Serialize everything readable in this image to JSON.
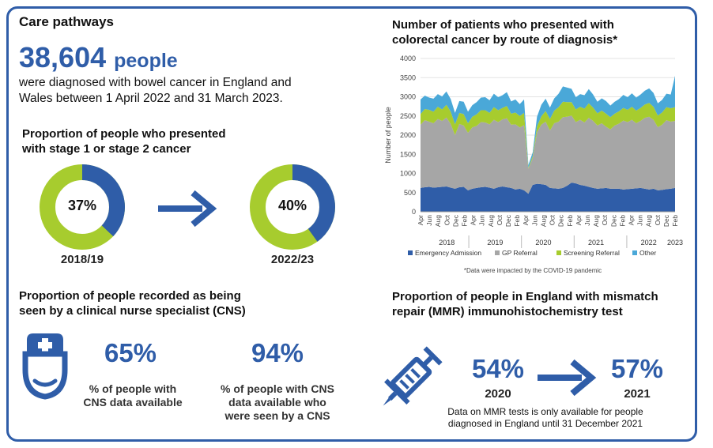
{
  "care": {
    "title": "Care pathways",
    "people_number": "38,604",
    "people_unit": "people",
    "people_text_1": "were diagnosed with bowel cancer in England and",
    "people_text_2": "Wales between 1 April 2022 and 31 March 2023."
  },
  "stage": {
    "title_1": "Proportion of people who presented",
    "title_2": "with stage 1 or stage 2 cancer",
    "donuts": [
      {
        "label": "37%",
        "value": 37,
        "year": "2018/19"
      },
      {
        "label": "40%",
        "value": 40,
        "year": "2022/23"
      }
    ],
    "colors": {
      "share": "#2f5da8",
      "rest": "#a7cc2e"
    }
  },
  "cns": {
    "title_1": "Proportion of people recorded as being",
    "title_2": "seen by a clinical nurse specialist (CNS)",
    "stat1_value": "65%",
    "stat1_caption_1": "% of people with",
    "stat1_caption_2": "CNS data available",
    "stat2_value": "94%",
    "stat2_caption_1": "% of people with CNS",
    "stat2_caption_2": "data available who",
    "stat2_caption_3": "were seen by a CNS",
    "icon": "nurse-icon"
  },
  "mmr": {
    "title_1": "Proportion of people in England with mismatch",
    "title_2": "repair (MMR) immunohistochemistry test",
    "stat1_value": "54%",
    "stat1_year": "2020",
    "stat2_value": "57%",
    "stat2_year": "2021",
    "note_1": "Data on MMR tests is only available for people",
    "note_2": "diagnosed in England until 31 December 2021",
    "icon": "syringe-icon"
  },
  "chart_data": {
    "type": "area",
    "stacked": true,
    "title_1": "Number of patients who presented with",
    "title_2": "colorectal cancer by route of diagnosis*",
    "ylabel": "Number of people",
    "ylim": [
      0,
      4000
    ],
    "yticks": [
      0,
      500,
      1000,
      1500,
      2000,
      2500,
      3000,
      3500,
      4000
    ],
    "x_tick_labels": [
      "Apr",
      "Jun",
      "Aug",
      "Oct",
      "Dec",
      "Feb",
      "Apr",
      "Jun",
      "Aug",
      "Oct",
      "Dec",
      "Feb",
      "Apr",
      "Jun",
      "Aug",
      "Oct",
      "Dec",
      "Feb",
      "Apr",
      "Jun",
      "Aug",
      "Oct",
      "Dec",
      "Feb",
      "Apr",
      "Jun",
      "Aug",
      "Oct",
      "Dec",
      "Feb"
    ],
    "year_labels": [
      "2018",
      "2019",
      "2020",
      "2021",
      "2022",
      "2023"
    ],
    "grid": true,
    "legend_position": "bottom",
    "footnote": "*Data were impacted by the COVID-19 pandemic",
    "series": [
      {
        "name": "Emergency Admission",
        "color": "#2f5da8",
        "values": [
          620,
          640,
          650,
          630,
          640,
          650,
          660,
          630,
          600,
          640,
          650,
          560,
          600,
          620,
          640,
          650,
          630,
          600,
          640,
          660,
          640,
          620,
          580,
          600,
          560,
          470,
          700,
          730,
          720,
          700,
          620,
          610,
          600,
          620,
          680,
          760,
          740,
          700,
          680,
          650,
          620,
          600,
          610,
          620,
          600,
          600,
          600,
          580,
          590,
          600,
          610,
          620,
          600,
          580,
          600,
          560,
          570,
          590,
          600,
          620
        ]
      },
      {
        "name": "GP Referral",
        "color": "#a6a6a6",
        "values": [
          1650,
          1750,
          1700,
          1680,
          1780,
          1720,
          1800,
          1660,
          1400,
          1650,
          1600,
          1500,
          1600,
          1620,
          1700,
          1680,
          1650,
          1800,
          1700,
          1750,
          1800,
          1650,
          1700,
          1600,
          1700,
          650,
          700,
          1350,
          1550,
          1650,
          1500,
          1700,
          1750,
          1850,
          1800,
          1750,
          1600,
          1700,
          1650,
          1800,
          1750,
          1650,
          1700,
          1600,
          1550,
          1650,
          1700,
          1800,
          1750,
          1800,
          1700,
          1750,
          1850,
          1900,
          1800,
          1650,
          1700,
          1800,
          1750,
          1750
        ]
      },
      {
        "name": "Screening Referral",
        "color": "#a7cc2e",
        "values": [
          280,
          290,
          310,
          300,
          320,
          300,
          330,
          320,
          280,
          290,
          300,
          250,
          280,
          300,
          310,
          320,
          300,
          330,
          310,
          300,
          320,
          290,
          310,
          300,
          320,
          30,
          50,
          150,
          220,
          280,
          300,
          330,
          380,
          400,
          380,
          350,
          330,
          340,
          360,
          380,
          350,
          320,
          330,
          340,
          320,
          310,
          320,
          330,
          320,
          340,
          330,
          340,
          350,
          360,
          340,
          300,
          320,
          340,
          350,
          360
        ]
      },
      {
        "name": "Other",
        "color": "#4aa8d8",
        "values": [
          380,
          350,
          320,
          340,
          330,
          340,
          350,
          330,
          300,
          310,
          320,
          300,
          300,
          320,
          330,
          340,
          330,
          350,
          340,
          330,
          360,
          320,
          340,
          310,
          350,
          70,
          100,
          250,
          300,
          320,
          300,
          320,
          350,
          400,
          380,
          350,
          320,
          330,
          350,
          370,
          340,
          300,
          320,
          330,
          300,
          310,
          320,
          340,
          330,
          350,
          340,
          350,
          360,
          380,
          360,
          320,
          330,
          350,
          360,
          820
        ]
      }
    ]
  }
}
